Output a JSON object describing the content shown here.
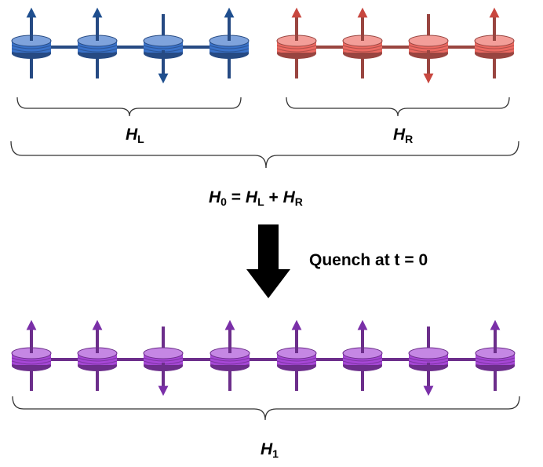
{
  "colors": {
    "left_chain": "#3a72c9",
    "right_chain": "#ec6a62",
    "quench_chain": "#a647d6",
    "arrow": "#000000"
  },
  "chains": {
    "left": {
      "spins": [
        "up",
        "up",
        "down",
        "up"
      ]
    },
    "right": {
      "spins": [
        "up",
        "up",
        "down",
        "up"
      ]
    },
    "quenched": {
      "spins": [
        "up",
        "up",
        "down",
        "up",
        "up",
        "up",
        "down",
        "up"
      ]
    }
  },
  "labels": {
    "h_left": {
      "symbol": "H",
      "sub": "L"
    },
    "h_right": {
      "symbol": "H",
      "sub": "R"
    },
    "h0": {
      "t1": "H",
      "s1": "0",
      "t2": " = ",
      "t3": "H",
      "s3": "L",
      "t4": " + ",
      "t5": "H",
      "s5": "R"
    },
    "quench_text": "Quench at t = 0",
    "h1": {
      "symbol": "H",
      "sub": "1"
    }
  }
}
